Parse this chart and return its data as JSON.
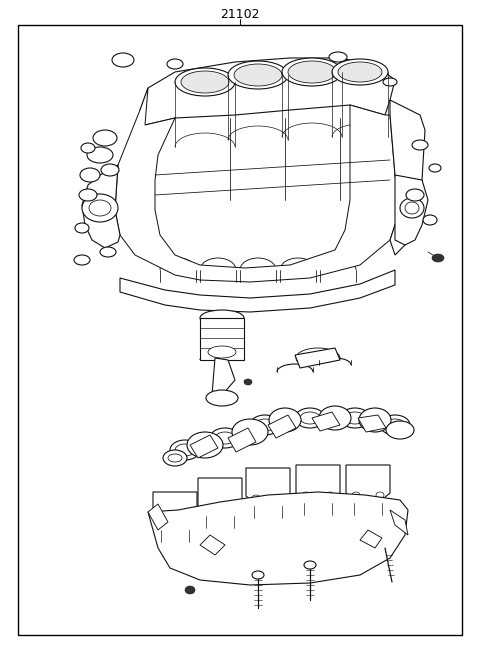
{
  "title": "21102",
  "background_color": "#ffffff",
  "border_color": "#000000",
  "fig_width": 4.8,
  "fig_height": 6.57,
  "dpi": 100,
  "line_color": "#111111",
  "lw": 0.8
}
